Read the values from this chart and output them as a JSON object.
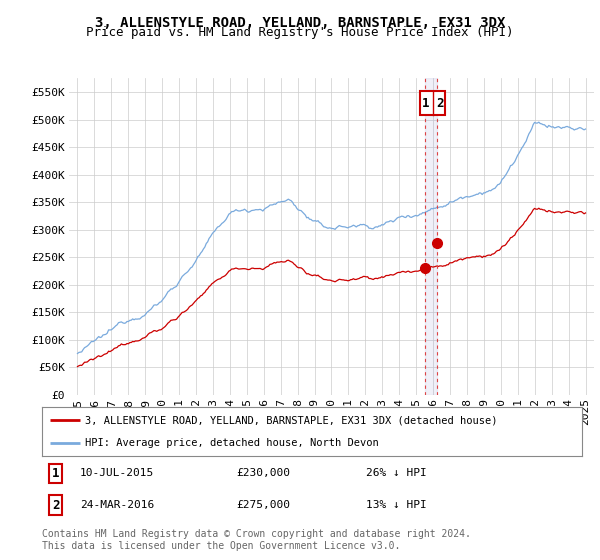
{
  "title": "3, ALLENSTYLE ROAD, YELLAND, BARNSTAPLE, EX31 3DX",
  "subtitle": "Price paid vs. HM Land Registry's House Price Index (HPI)",
  "ylabel_ticks": [
    "£0",
    "£50K",
    "£100K",
    "£150K",
    "£200K",
    "£250K",
    "£300K",
    "£350K",
    "£400K",
    "£450K",
    "£500K",
    "£550K"
  ],
  "ytick_values": [
    0,
    50000,
    100000,
    150000,
    200000,
    250000,
    300000,
    350000,
    400000,
    450000,
    500000,
    550000
  ],
  "ylim": [
    0,
    575000
  ],
  "xlim_start": 1994.5,
  "xlim_end": 2025.5,
  "sale1_date": 2015.53,
  "sale1_price": 230000,
  "sale2_date": 2016.23,
  "sale2_price": 275000,
  "hpi_color": "#7aaadd",
  "sold_color": "#cc0000",
  "vline_color": "#dd4444",
  "background_color": "#ffffff",
  "grid_color": "#cccccc",
  "legend_label_sold": "3, ALLENSTYLE ROAD, YELLAND, BARNSTAPLE, EX31 3DX (detached house)",
  "legend_label_hpi": "HPI: Average price, detached house, North Devon",
  "footer": "Contains HM Land Registry data © Crown copyright and database right 2024.\nThis data is licensed under the Open Government Licence v3.0.",
  "title_fontsize": 10,
  "subtitle_fontsize": 9,
  "tick_fontsize": 8,
  "legend_fontsize": 8,
  "annotation_fontsize": 8,
  "footer_fontsize": 7
}
